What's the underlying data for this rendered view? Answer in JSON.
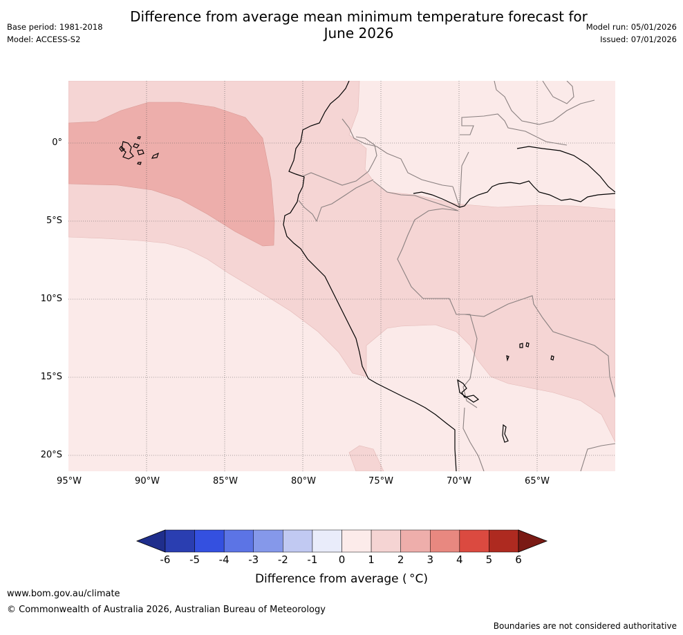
{
  "title": {
    "line1": "Difference from average mean minimum temperature forecast for",
    "line2": "June 2026"
  },
  "meta": {
    "base_period": "Base period: 1981-2018",
    "model": "Model: ACCESS-S2",
    "model_run": "Model run: 05/01/2026",
    "issued": "Issued: 07/01/2026"
  },
  "map": {
    "latitude_labels": [
      "0°",
      "5°S",
      "10°S",
      "15°S",
      "20°S"
    ],
    "longitude_labels": [
      "95°W",
      "90°W",
      "85°W",
      "80°W",
      "75°W",
      "70°W",
      "65°W"
    ],
    "colors": {
      "cat_0_1": "#fbeae9",
      "cat_1_2": "#f5d5d4",
      "cat_2_3": "#edaeab",
      "coast": "#000000",
      "border": "#8a8080",
      "grid": "#555555"
    }
  },
  "colorbar": {
    "ticks": [
      "-6",
      "-5",
      "-4",
      "-3",
      "-2",
      "-1",
      "0",
      "1",
      "2",
      "3",
      "4",
      "5",
      "6"
    ],
    "colors": [
      "#1f2e8c",
      "#2a3eb1",
      "#3450e0",
      "#5c74e5",
      "#8598ea",
      "#c1c9f2",
      "#e9ecfa",
      "#fcebea",
      "#f5d4d3",
      "#eeaeab",
      "#e88880",
      "#db4a40",
      "#ae2a20",
      "#7a1a14"
    ],
    "label": "Difference from average ($^\\circ$C)",
    "label_display": "Difference from average ( °C)"
  },
  "footer": {
    "url": "www.bom.gov.au/climate",
    "copyright": "© Commonwealth of Australia 2026, Australian Bureau of Meteorology",
    "disclaimer": "Boundaries are not considered authoritative"
  }
}
